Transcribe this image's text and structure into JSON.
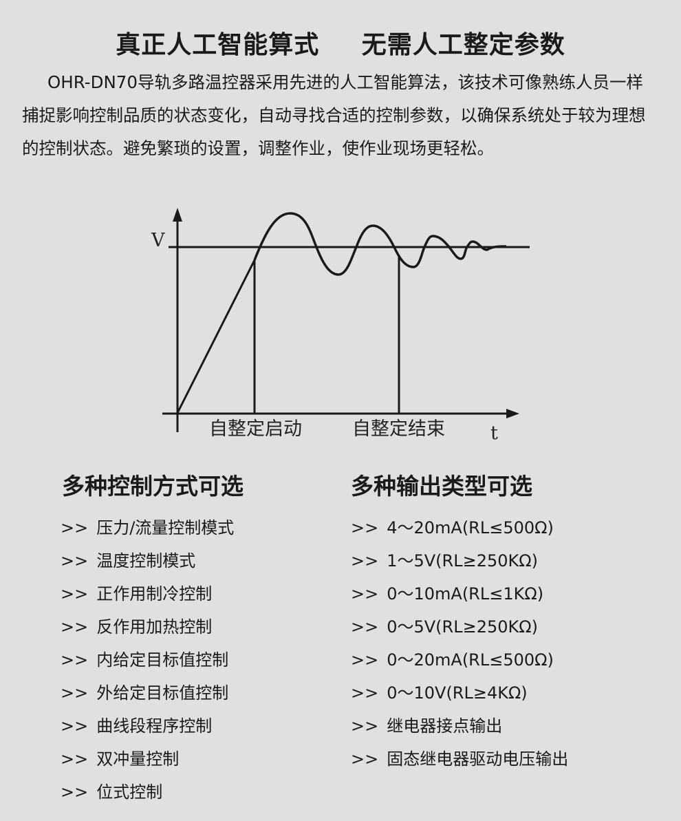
{
  "title": {
    "part1": "真正人工智能算式",
    "part2": "无需人工整定参数"
  },
  "intro": "OHR-DN70导轨多路温控器采用先进的人工智能算法，该技术可像熟练人员一样捕捉影响控制品质的状态变化，自动寻找合适的控制参数，以确保系统处于较为理想的控制状态。避免繁琐的设置，调整作业，使作业现场更轻松。",
  "diagram": {
    "y_label": "V",
    "x_label": "t",
    "start_label": "自整定启动",
    "end_label": "自整定结束"
  },
  "left": {
    "heading": "多种控制方式可选",
    "marker": ">>",
    "items": [
      "压力/流量控制模式",
      "温度控制模式",
      "正作用制冷控制",
      "反作用加热控制",
      "内给定目标值控制",
      "外给定目标值控制",
      "曲线段程序控制",
      "双冲量控制",
      "位式控制"
    ]
  },
  "right": {
    "heading": "多种输出类型可选",
    "marker": ">>",
    "items": [
      "4～20mA(RL≤500Ω)",
      "1～5V(RL≥250KΩ)",
      "0～10mA(RL≤1KΩ)",
      "0～5V(RL≥250KΩ)",
      "0～20mA(RL≤500Ω)",
      "0～10V(RL≥4KΩ)",
      "继电器接点输出",
      "固态继电器驱动电压输出"
    ]
  }
}
